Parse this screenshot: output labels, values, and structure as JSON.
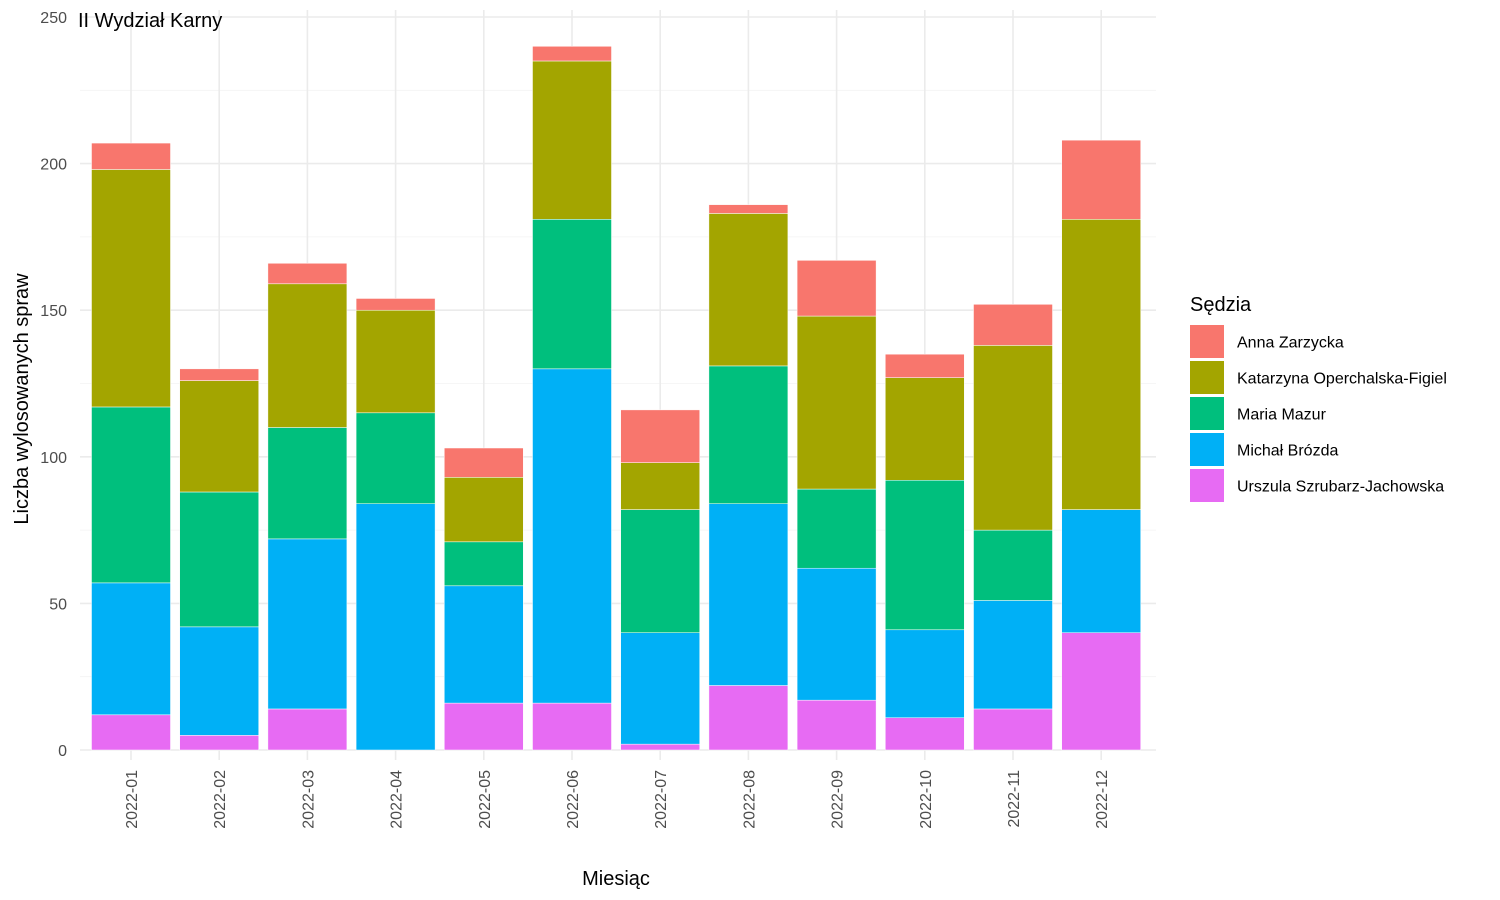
{
  "chart_data": {
    "type": "bar",
    "stacked": true,
    "title": "II Wydział Karny",
    "xlabel": "Miesiąc",
    "ylabel": "Liczba wylosowanych spraw",
    "ylim": [
      0,
      250
    ],
    "yticks": [
      0,
      50,
      100,
      150,
      200,
      250
    ],
    "grid": true,
    "legend_position": "right",
    "legend_title": "Sędzia",
    "categories": [
      "2022-01",
      "2022-02",
      "2022-03",
      "2022-04",
      "2022-05",
      "2022-06",
      "2022-07",
      "2022-08",
      "2022-09",
      "2022-10",
      "2022-11",
      "2022-12"
    ],
    "series": [
      {
        "name": "Anna Zarzycka",
        "color": "#F8766D",
        "values": [
          9,
          4,
          7,
          4,
          10,
          5,
          18,
          3,
          19,
          8,
          14,
          27
        ]
      },
      {
        "name": "Katarzyna Operchalska-Figiel",
        "color": "#A3A500",
        "values": [
          81,
          38,
          49,
          35,
          22,
          54,
          16,
          52,
          59,
          35,
          63,
          99
        ]
      },
      {
        "name": "Maria Mazur",
        "color": "#00BF7D",
        "values": [
          60,
          46,
          38,
          31,
          15,
          51,
          42,
          47,
          27,
          51,
          24,
          0
        ]
      },
      {
        "name": "Michał Brózda",
        "color": "#00B0F6",
        "values": [
          45,
          37,
          58,
          84,
          40,
          114,
          38,
          62,
          45,
          30,
          37,
          42
        ]
      },
      {
        "name": "Urszula Szrubarz-Jachowska",
        "color": "#E76BF3",
        "values": [
          12,
          5,
          14,
          0,
          16,
          16,
          2,
          22,
          17,
          11,
          14,
          40
        ]
      }
    ]
  }
}
